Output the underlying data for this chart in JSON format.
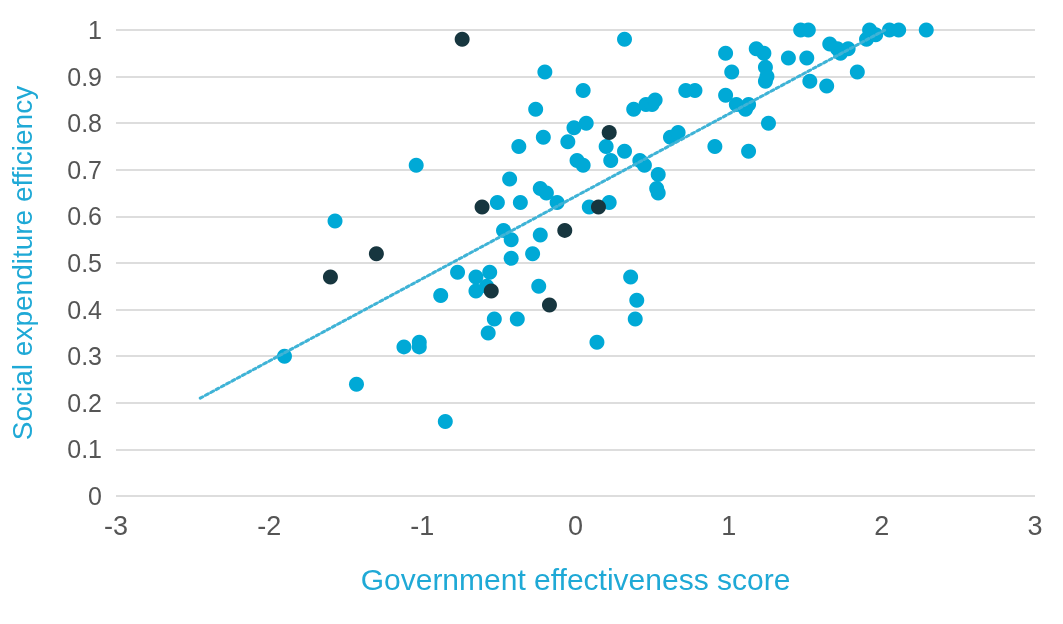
{
  "chart_data": {
    "type": "scatter",
    "xlabel": "Government effectiveness score",
    "ylabel": "Social expenditure efficiency",
    "xlim": [
      -3,
      3
    ],
    "xticks": [
      -3,
      -2,
      -1,
      0,
      1,
      2,
      3
    ],
    "ylim": [
      0,
      1
    ],
    "yticks": [
      0,
      0.1,
      0.2,
      0.3,
      0.4,
      0.5,
      0.6,
      0.7,
      0.8,
      0.9,
      1
    ],
    "grid": "y",
    "marker": "circle",
    "series": [
      {
        "color": "#00a9d6",
        "x": [
          -1.9,
          -1.43,
          -1.57,
          -1.04,
          -1.12,
          -1.02,
          -1.02,
          -0.85,
          -0.88,
          -0.77,
          -0.65,
          -0.65,
          -0.58,
          -0.56,
          -0.57,
          -0.53,
          -0.51,
          -0.47,
          -0.42,
          -0.42,
          -0.43,
          -0.38,
          -0.37,
          -0.36,
          -0.28,
          -0.26,
          -0.24,
          -0.23,
          -0.23,
          -0.19,
          -0.2,
          -0.21,
          -0.12,
          -0.05,
          -0.01,
          0.01,
          0.05,
          0.05,
          0.07,
          0.09,
          0.14,
          0.2,
          0.22,
          0.23,
          0.32,
          0.32,
          0.36,
          0.38,
          0.39,
          0.4,
          0.42,
          0.46,
          0.45,
          0.5,
          0.52,
          0.54,
          0.54,
          0.53,
          0.62,
          0.67,
          0.72,
          0.78,
          0.91,
          0.98,
          0.98,
          1.02,
          1.05,
          1.11,
          1.13,
          1.13,
          1.18,
          1.23,
          1.24,
          1.24,
          1.25,
          1.26,
          1.39,
          1.47,
          1.52,
          1.51,
          1.53,
          1.64,
          1.66,
          1.71,
          1.73,
          1.78,
          1.84,
          1.9,
          1.92,
          1.96,
          2.05,
          2.11,
          2.29
        ],
        "values": [
          0.3,
          0.24,
          0.59,
          0.71,
          0.32,
          0.33,
          0.32,
          0.16,
          0.43,
          0.48,
          0.47,
          0.44,
          0.45,
          0.48,
          0.35,
          0.38,
          0.63,
          0.57,
          0.55,
          0.51,
          0.68,
          0.38,
          0.75,
          0.63,
          0.52,
          0.83,
          0.45,
          0.56,
          0.66,
          0.65,
          0.91,
          0.77,
          0.63,
          0.76,
          0.79,
          0.72,
          0.87,
          0.71,
          0.8,
          0.62,
          0.33,
          0.75,
          0.63,
          0.72,
          0.74,
          0.98,
          0.47,
          0.83,
          0.38,
          0.42,
          0.72,
          0.84,
          0.71,
          0.84,
          0.85,
          0.69,
          0.65,
          0.66,
          0.77,
          0.78,
          0.87,
          0.87,
          0.75,
          0.95,
          0.86,
          0.91,
          0.84,
          0.83,
          0.84,
          0.74,
          0.96,
          0.95,
          0.92,
          0.89,
          0.9,
          0.8,
          0.94,
          1.0,
          1.0,
          0.94,
          0.89,
          0.88,
          0.97,
          0.96,
          0.95,
          0.96,
          0.91,
          0.98,
          1.0,
          0.99,
          1.0,
          1.0,
          1.0
        ]
      },
      {
        "color": "#17363f",
        "x": [
          -0.74,
          -1.6,
          -1.3,
          -0.61,
          -0.55,
          -0.17,
          -0.07,
          0.15,
          0.22
        ],
        "values": [
          0.98,
          0.47,
          0.52,
          0.62,
          0.44,
          0.41,
          0.57,
          0.62,
          0.78
        ]
      },
      {
        "type": "line",
        "color": "#3fb3d6",
        "line_style": "dotted",
        "marker": "none",
        "x": [
          -2.45,
          2.02
        ],
        "values": [
          0.21,
          1.0
        ]
      }
    ]
  }
}
